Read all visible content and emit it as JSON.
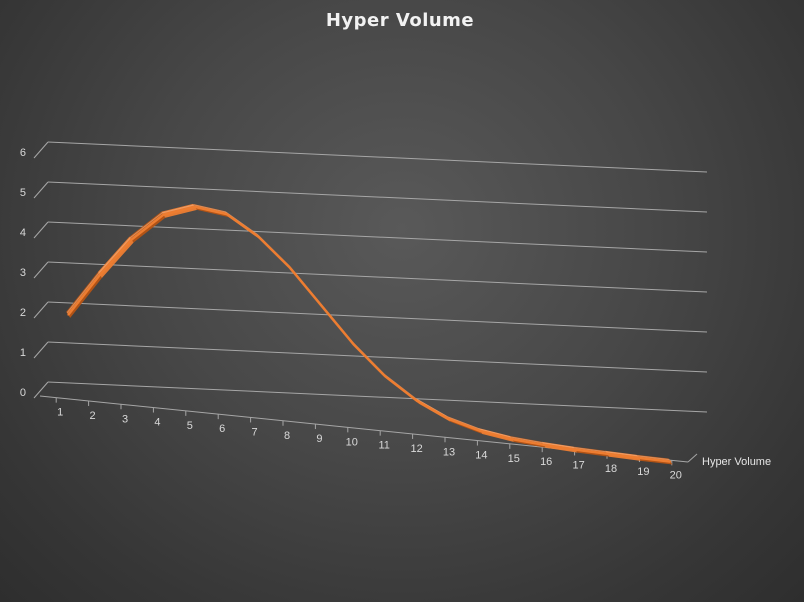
{
  "chart_data": {
    "type": "line",
    "style": "3d-line",
    "title": "Hyper Volume",
    "categories": [
      "1",
      "2",
      "3",
      "4",
      "5",
      "6",
      "7",
      "8",
      "9",
      "10",
      "11",
      "12",
      "13",
      "14",
      "15",
      "16",
      "17",
      "18",
      "19",
      "20"
    ],
    "series": [
      {
        "name": "Hyper Volume",
        "values": [
          1.97,
          3.05,
          4.02,
          4.72,
          5.0,
          4.9,
          4.42,
          3.72,
          2.85,
          1.98,
          1.26,
          0.73,
          0.36,
          0.14,
          0.02,
          -0.04,
          -0.08,
          -0.1,
          -0.12,
          -0.13
        ]
      }
    ],
    "y_ticks": [
      "0",
      "1",
      "2",
      "3",
      "4",
      "5",
      "6"
    ],
    "ylim": [
      0,
      6
    ],
    "grid": true,
    "legend": "none",
    "colors": {
      "series": "#ed7d31",
      "series_dark": "#b75414",
      "series_light": "#f4b183",
      "grid": "#a6a6a6",
      "text": "#d9d9d9"
    }
  }
}
